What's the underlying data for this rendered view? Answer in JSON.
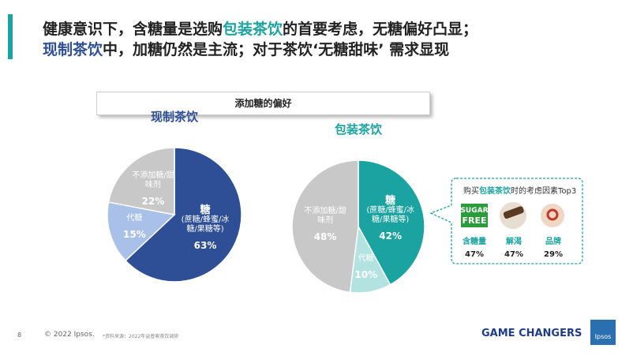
{
  "header": {
    "line1": [
      "健康意识下，含糖量是选购",
      "包装茶饮",
      "的首要考虑，无糖偏好凸显；"
    ],
    "line2": [
      "现制茶饮",
      "中，加糖仍然是主流；对于茶饮‘无糖甜味’ 需求显现"
    ]
  },
  "section_label": "添加糖的偏好",
  "chart_data": [
    {
      "type": "pie",
      "title": "现制茶饮",
      "title_color": "#2e4f96",
      "categories": [
        "糖",
        "代糖",
        "不添加糖/甜味剂"
      ],
      "notes": [
        "(蔗糖/蜂蜜/冰糖/果糖等)"
      ],
      "values": [
        63,
        15,
        22
      ],
      "value_labels": [
        "63%",
        "15%",
        "22%"
      ],
      "colors": [
        "#2e4f96",
        "#a9c0e8",
        "#c8c8c8"
      ]
    },
    {
      "type": "pie",
      "title": "包装茶饮",
      "title_color": "#1aa3a0",
      "categories": [
        "糖",
        "代糖",
        "不添加糖/甜味剂"
      ],
      "notes": [
        "(蔗糖/蜂蜜/冰糖/果糖等)"
      ],
      "values": [
        42,
        10,
        48
      ],
      "value_labels": [
        "42%",
        "10%",
        "48%"
      ],
      "colors": [
        "#1aa3a0",
        "#b3e3e0",
        "#c8c8c8"
      ]
    }
  ],
  "callout": {
    "title": [
      "购买",
      "包装茶饮",
      "时的考虑因素Top3"
    ],
    "icon_text": [
      "SUGAR",
      "FREE"
    ],
    "items": [
      {
        "label": "含糖量",
        "value": "47%"
      },
      {
        "label": "解渴",
        "value": "47%"
      },
      {
        "label": "品牌",
        "value": "29%"
      }
    ]
  },
  "footer": {
    "page": "8",
    "copyright": "© 2022 Ipsos.",
    "source": "*资料来源：2022年益普索茶饮调研",
    "tagline": "GAME CHANGERS",
    "logo": "Ipsos"
  }
}
